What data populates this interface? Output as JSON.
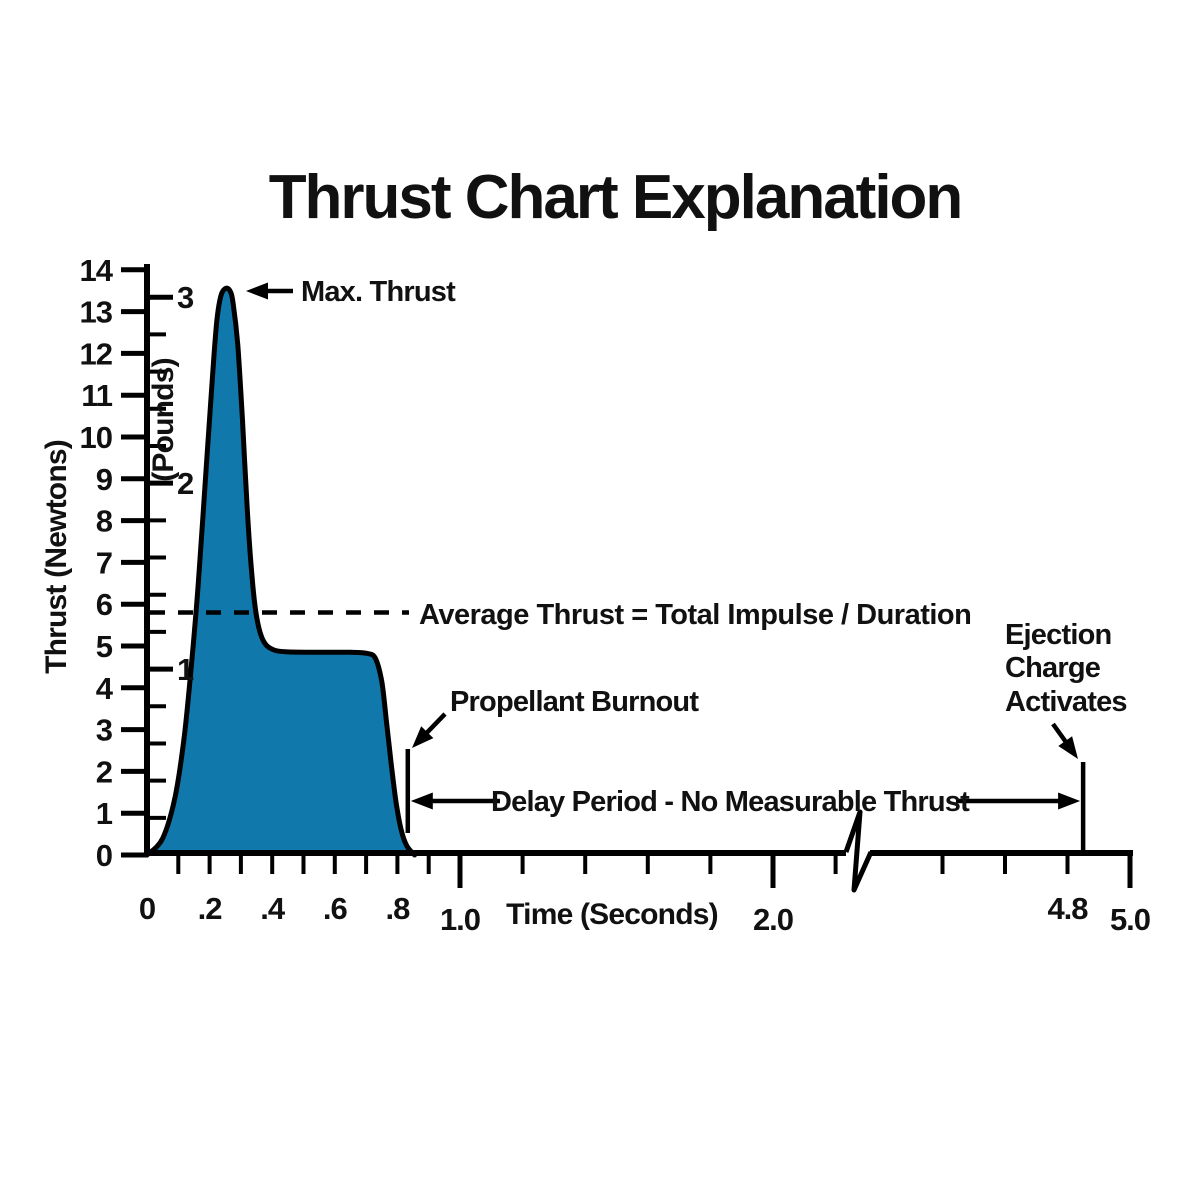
{
  "title": "Thrust Chart Explanation",
  "chart_data": {
    "type": "area",
    "title": "Thrust Chart Explanation",
    "xlabel": "Time (Seconds)",
    "ylabel": "Thrust (Newtons)",
    "y2label": "(Pounds)",
    "xlim": [
      0,
      5.0
    ],
    "ylim": [
      0,
      14
    ],
    "x_axis_break": [
      2.3,
      4.35
    ],
    "grid": false,
    "legend": false,
    "colors": {
      "fill": "#1178ab",
      "line": "#000000",
      "background": "#ffffff",
      "text": "#111111"
    },
    "curve_points": [
      [
        0.0,
        0.0
      ],
      [
        0.05,
        0.4
      ],
      [
        0.09,
        1.4
      ],
      [
        0.12,
        2.9
      ],
      [
        0.145,
        4.8
      ],
      [
        0.165,
        6.6
      ],
      [
        0.185,
        8.8
      ],
      [
        0.205,
        11.0
      ],
      [
        0.222,
        12.7
      ],
      [
        0.235,
        13.35
      ],
      [
        0.25,
        13.55
      ],
      [
        0.265,
        13.5
      ],
      [
        0.275,
        13.2
      ],
      [
        0.29,
        12.2
      ],
      [
        0.305,
        10.4
      ],
      [
        0.32,
        8.3
      ],
      [
        0.335,
        6.7
      ],
      [
        0.35,
        5.7
      ],
      [
        0.37,
        5.15
      ],
      [
        0.4,
        4.92
      ],
      [
        0.45,
        4.86
      ],
      [
        0.55,
        4.85
      ],
      [
        0.65,
        4.85
      ],
      [
        0.705,
        4.82
      ],
      [
        0.73,
        4.7
      ],
      [
        0.75,
        4.15
      ],
      [
        0.765,
        3.2
      ],
      [
        0.78,
        2.2
      ],
      [
        0.795,
        1.3
      ],
      [
        0.812,
        0.6
      ],
      [
        0.83,
        0.22
      ],
      [
        0.855,
        0.0
      ]
    ],
    "key_points": {
      "max_thrust_newtons": 13.55,
      "max_thrust_time_s": 0.25,
      "average_thrust_newtons": 5.8,
      "sustain_thrust_newtons": 4.85,
      "propellant_burnout_time_s": 0.83,
      "ejection_charge_time_s": 4.85
    },
    "y_ticks_newtons": [
      0,
      1,
      2,
      3,
      4,
      5,
      6,
      7,
      8,
      9,
      10,
      11,
      12,
      13,
      14
    ],
    "y_ticks_pounds_labeled": [
      1,
      2,
      3
    ],
    "y_ticks_pounds_minor": [
      0.2,
      0.4,
      0.6,
      0.8,
      1.2,
      1.4,
      1.6,
      1.8,
      2.2,
      2.4,
      2.6,
      2.8
    ],
    "pounds_to_newtons": 4.448,
    "x_ticks_minor": [
      0.1,
      0.2,
      0.3,
      0.4,
      0.5,
      0.6,
      0.7,
      0.8,
      0.9,
      1.2,
      1.4,
      1.6,
      1.8,
      2.2,
      4.4,
      4.6,
      4.8
    ],
    "x_ticks_major": [
      1.0,
      2.0,
      5.0
    ],
    "x_tick_labels": [
      {
        "t": 0.0,
        "text": "0"
      },
      {
        "t": 0.2,
        "text": ".2"
      },
      {
        "t": 0.4,
        "text": ".4"
      },
      {
        "t": 0.6,
        "text": ".6"
      },
      {
        "t": 0.8,
        "text": ".8"
      },
      {
        "t": 1.0,
        "text": "1.0"
      },
      {
        "t": 2.0,
        "text": "2.0"
      },
      {
        "t": 4.8,
        "text": "4.8"
      },
      {
        "t": 5.0,
        "text": "5.0"
      }
    ],
    "annotations": {
      "max_thrust": "Max. Thrust",
      "average_thrust": "Average Thrust = Total Impulse / Duration",
      "propellant_burnout": "Propellant Burnout",
      "delay_period": "Delay Period - No Measurable Thrust",
      "ejection_lines": [
        "Ejection",
        "Charge",
        "Activates"
      ]
    }
  }
}
